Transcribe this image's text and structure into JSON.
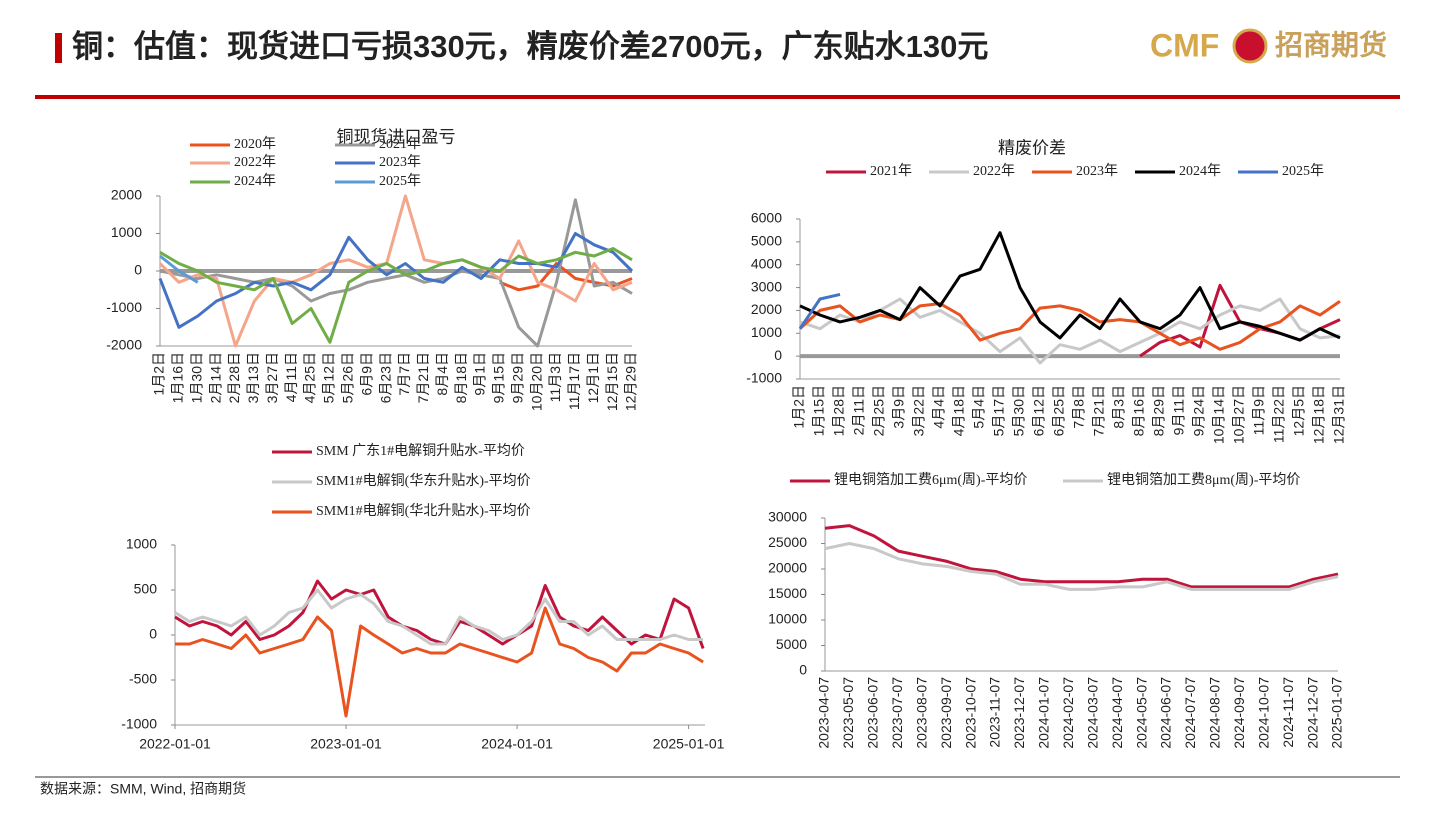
{
  "header": {
    "title": "铜：估值：现货进口亏损330元，精废价差2700元，广东贴水130元",
    "logo_mark": "CMF",
    "logo_name": "招商期货"
  },
  "footer": {
    "source": "数据来源：SMM, Wind, 招商期货"
  },
  "chart_data": [
    {
      "type": "line",
      "title": "铜现货进口盈亏",
      "zero_line": true,
      "zero_line_color": "#999999",
      "categories": [
        "1月2日",
        "1月16日",
        "1月30日",
        "2月14日",
        "2月28日",
        "3月13日",
        "3月27日",
        "4月11日",
        "4月25日",
        "5月12日",
        "5月26日",
        "6月9日",
        "6月23日",
        "7月7日",
        "7月21日",
        "8月4日",
        "8月18日",
        "9月1日",
        "9月15日",
        "9月29日",
        "10月20日",
        "11月3日",
        "11月17日",
        "12月1日",
        "12月15日",
        "12月29日"
      ],
      "ylim": [
        -2000,
        2000
      ],
      "yticks": [
        -2000,
        -1000,
        0,
        1000,
        2000
      ],
      "series": [
        {
          "name": "2020年",
          "color": "#e8531f",
          "values": [
            null,
            null,
            null,
            null,
            null,
            null,
            null,
            null,
            null,
            null,
            null,
            null,
            null,
            null,
            null,
            null,
            null,
            null,
            -300,
            -500,
            -400,
            200,
            -200,
            -300,
            -400,
            -200
          ]
        },
        {
          "name": "2021年",
          "color": "#999999",
          "values": [
            0,
            -100,
            -200,
            -100,
            -200,
            -300,
            -200,
            -400,
            -800,
            -600,
            -500,
            -300,
            -200,
            -100,
            -300,
            -200,
            0,
            -100,
            -200,
            -1500,
            -2000,
            -300,
            1900,
            -400,
            -300,
            -600
          ]
        },
        {
          "name": "2022年",
          "color": "#f4a58a",
          "values": [
            200,
            -300,
            -100,
            -200,
            -2000,
            -800,
            -200,
            -300,
            -100,
            200,
            300,
            100,
            200,
            2000,
            300,
            200,
            300,
            100,
            -200,
            800,
            -300,
            -500,
            -800,
            200,
            -500,
            -300
          ]
        },
        {
          "name": "2023年",
          "color": "#4472c4",
          "values": [
            -200,
            -1500,
            -1200,
            -800,
            -600,
            -300,
            -400,
            -300,
            -500,
            -100,
            900,
            300,
            -100,
            200,
            -200,
            -300,
            100,
            -200,
            300,
            200,
            200,
            100,
            1000,
            700,
            500,
            0
          ]
        },
        {
          "name": "2024年",
          "color": "#70ad47",
          "values": [
            500,
            200,
            0,
            -300,
            -400,
            -500,
            -200,
            -1400,
            -1000,
            -1900,
            -300,
            0,
            200,
            -100,
            0,
            200,
            300,
            100,
            0,
            400,
            200,
            300,
            500,
            400,
            600,
            300
          ]
        },
        {
          "name": "2025年",
          "color": "#5b9bd5",
          "values": [
            400,
            0,
            -300,
            null,
            null,
            null,
            null,
            null,
            null,
            null,
            null,
            null,
            null,
            null,
            null,
            null,
            null,
            null,
            null,
            null,
            null,
            null,
            null,
            null,
            null,
            null
          ]
        }
      ]
    },
    {
      "type": "line",
      "title": "精废价差",
      "zero_line": true,
      "zero_line_color": "#999999",
      "categories": [
        "1月2日",
        "1月15日",
        "1月28日",
        "2月11日",
        "2月25日",
        "3月9日",
        "3月22日",
        "4月4日",
        "4月18日",
        "5月4日",
        "5月17日",
        "5月30日",
        "6月12日",
        "6月25日",
        "7月8日",
        "7月21日",
        "8月3日",
        "8月16日",
        "8月29日",
        "9月11日",
        "9月24日",
        "10月14日",
        "10月27日",
        "11月9日",
        "11月22日",
        "12月5日",
        "12月18日",
        "12月31日"
      ],
      "ylim": [
        -1000,
        6000
      ],
      "yticks": [
        -1000,
        0,
        1000,
        2000,
        3000,
        4000,
        5000,
        6000
      ],
      "series": [
        {
          "name": "2021年",
          "color": "#c0143c",
          "values": [
            null,
            null,
            null,
            null,
            null,
            null,
            null,
            null,
            null,
            null,
            null,
            null,
            null,
            null,
            null,
            null,
            null,
            0,
            600,
            900,
            400,
            3100,
            1500,
            1200,
            1000,
            700,
            1200,
            1600
          ]
        },
        {
          "name": "2022年",
          "color": "#c8c8c8",
          "values": [
            1500,
            1200,
            1800,
            1500,
            2000,
            2500,
            1700,
            2000,
            1500,
            1000,
            200,
            800,
            -300,
            500,
            300,
            700,
            200,
            600,
            1000,
            1500,
            1200,
            1800,
            2200,
            2000,
            2500,
            1200,
            800,
            900
          ]
        },
        {
          "name": "2023年",
          "color": "#e8531f",
          "values": [
            1200,
            2000,
            2200,
            1500,
            1800,
            1600,
            2200,
            2300,
            1800,
            700,
            1000,
            1200,
            2100,
            2200,
            2000,
            1500,
            1600,
            1500,
            1000,
            500,
            800,
            300,
            600,
            1200,
            1500,
            2200,
            1800,
            2400
          ]
        },
        {
          "name": "2024年",
          "color": "#000000",
          "values": [
            2200,
            1800,
            1500,
            1700,
            2000,
            1600,
            3000,
            2200,
            3500,
            3800,
            5400,
            3000,
            1500,
            800,
            1800,
            1200,
            2500,
            1500,
            1200,
            1800,
            3000,
            1200,
            1500,
            1300,
            1000,
            700,
            1200,
            800
          ]
        },
        {
          "name": "2025年",
          "color": "#4472c4",
          "values": [
            1200,
            2500,
            2700,
            null,
            null,
            null,
            null,
            null,
            null,
            null,
            null,
            null,
            null,
            null,
            null,
            null,
            null,
            null,
            null,
            null,
            null,
            null,
            null,
            null,
            null,
            null,
            null,
            null
          ]
        }
      ]
    },
    {
      "type": "line",
      "x": [
        "2022-01-01",
        "2022-02-01",
        "2022-03-01",
        "2022-04-01",
        "2022-05-01",
        "2022-06-01",
        "2022-07-01",
        "2022-08-01",
        "2022-09-01",
        "2022-10-01",
        "2022-11-01",
        "2022-12-01",
        "2023-01-01",
        "2023-02-01",
        "2023-03-01",
        "2023-04-01",
        "2023-05-01",
        "2023-06-01",
        "2023-07-01",
        "2023-08-01",
        "2023-09-01",
        "2023-10-01",
        "2023-11-01",
        "2023-12-01",
        "2024-01-01",
        "2024-02-01",
        "2024-03-01",
        "2024-04-01",
        "2024-05-01",
        "2024-06-01",
        "2024-07-01",
        "2024-08-01",
        "2024-09-01",
        "2024-10-01",
        "2024-11-01",
        "2024-12-01",
        "2025-01-01",
        "2025-02-01"
      ],
      "xlim": [
        "2022-01-01",
        "2025-02-05"
      ],
      "xticks": [
        "2022-01-01",
        "2023-01-01",
        "2024-01-01",
        "2025-01-01"
      ],
      "ylim": [
        -1000,
        1000
      ],
      "yticks": [
        -1000,
        -500,
        0,
        500,
        1000
      ],
      "series": [
        {
          "name": "SMM 广东1#电解铜升贴水-平均价",
          "color": "#c0143c",
          "values": [
            200,
            100,
            150,
            100,
            0,
            150,
            -50,
            0,
            100,
            250,
            600,
            400,
            500,
            450,
            500,
            200,
            100,
            50,
            -50,
            -100,
            150,
            100,
            0,
            -100,
            0,
            100,
            550,
            200,
            100,
            50,
            200,
            50,
            -100,
            0,
            -50,
            400,
            300,
            -150
          ]
        },
        {
          "name": "SMM1#电解铜(华东升贴水)-平均价",
          "color": "#c8c8c8",
          "values": [
            250,
            150,
            200,
            150,
            100,
            200,
            0,
            100,
            250,
            300,
            500,
            300,
            400,
            450,
            350,
            150,
            100,
            0,
            -100,
            -100,
            200,
            100,
            50,
            -50,
            0,
            150,
            400,
            150,
            150,
            0,
            100,
            -50,
            -50,
            -50,
            -50,
            0,
            -50,
            -50
          ]
        },
        {
          "name": "SMM1#电解铜(华北升贴水)-平均价",
          "color": "#e8531f",
          "values": [
            -100,
            -100,
            -50,
            -100,
            -150,
            0,
            -200,
            -150,
            -100,
            -50,
            200,
            50,
            -900,
            100,
            0,
            -100,
            -200,
            -150,
            -200,
            -200,
            -100,
            -150,
            -200,
            -250,
            -300,
            -200,
            300,
            -100,
            -150,
            -250,
            -300,
            -400,
            -200,
            -200,
            -100,
            -150,
            -200,
            -300
          ]
        }
      ]
    },
    {
      "type": "line",
      "categories": [
        "2023-04-07",
        "2023-05-07",
        "2023-06-07",
        "2023-07-07",
        "2023-08-07",
        "2023-09-07",
        "2023-10-07",
        "2023-11-07",
        "2023-12-07",
        "2024-01-07",
        "2024-02-07",
        "2024-03-07",
        "2024-04-07",
        "2024-05-07",
        "2024-06-07",
        "2024-07-07",
        "2024-08-07",
        "2024-09-07",
        "2024-10-07",
        "2024-11-07",
        "2024-12-07",
        "2025-01-07"
      ],
      "ylim": [
        0,
        30000
      ],
      "yticks": [
        0,
        5000,
        10000,
        15000,
        20000,
        25000,
        30000
      ],
      "series": [
        {
          "name": "锂电铜箔加工费6μm(周)-平均价",
          "color": "#c0143c",
          "values": [
            28000,
            28500,
            26500,
            23500,
            22500,
            21500,
            20000,
            19500,
            18000,
            17500,
            17500,
            17500,
            17500,
            18000,
            18000,
            16500,
            16500,
            16500,
            16500,
            16500,
            18000,
            19000
          ]
        },
        {
          "name": "锂电铜箔加工费8μm(周)-平均价",
          "color": "#c8c8c8",
          "values": [
            24000,
            25000,
            24000,
            22000,
            21000,
            20500,
            19500,
            19000,
            17000,
            17000,
            16000,
            16000,
            16500,
            16500,
            17500,
            16000,
            16000,
            16000,
            16000,
            16000,
            17500,
            18500
          ]
        }
      ]
    }
  ]
}
